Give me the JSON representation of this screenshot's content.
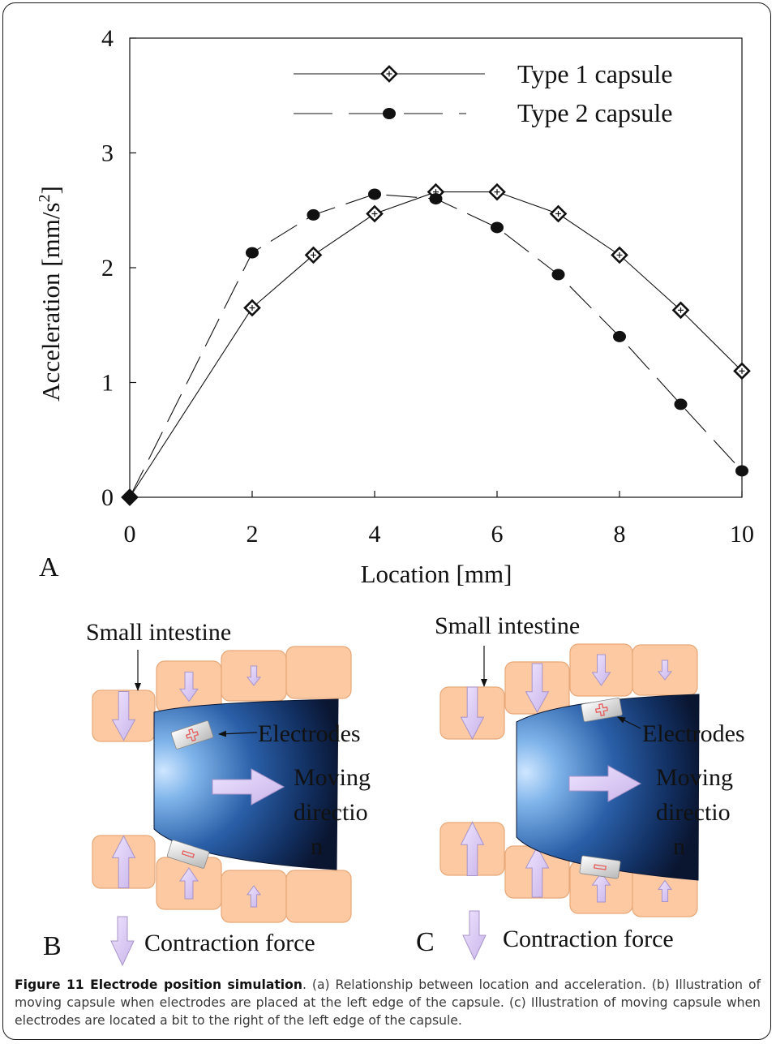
{
  "chart_data": {
    "type": "line",
    "x": [
      0,
      2,
      3,
      4,
      5,
      6,
      7,
      8,
      9,
      10
    ],
    "xlabel": "Location [mm]",
    "ylabel": "Acceleration [mm/s²]",
    "xlim": [
      0,
      10
    ],
    "ylim": [
      0,
      4
    ],
    "xticks": [
      "0",
      "2",
      "4",
      "6",
      "8",
      "10"
    ],
    "yticks": [
      "0",
      "1",
      "2",
      "3",
      "4"
    ],
    "legend_position": "top-right",
    "grid": false,
    "series": [
      {
        "name": "Type 1 capsule",
        "line_style": "solid",
        "marker": "diamond-cross",
        "values": [
          0,
          1.65,
          2.11,
          2.47,
          2.66,
          2.66,
          2.47,
          2.11,
          1.63,
          1.1
        ]
      },
      {
        "name": "Type 2 capsule",
        "line_style": "long-dash",
        "marker": "filled-circle",
        "values": [
          0,
          2.13,
          2.46,
          2.64,
          2.6,
          2.35,
          1.94,
          1.4,
          0.81,
          0.23
        ]
      }
    ]
  },
  "panels": {
    "a": {
      "letter": "A"
    },
    "b": {
      "letter": "B",
      "intestine_label": "Small intestine",
      "electrodes_label": "Electrodes",
      "moving_line1": "Moving",
      "moving_line2": "directio",
      "moving_line3": "n",
      "force_label": "Contraction force"
    },
    "c": {
      "letter": "C",
      "intestine_label": "Small intestine",
      "electrodes_label": "Electrodes",
      "moving_line1": "Moving",
      "moving_line2": "directio",
      "moving_line3": "n",
      "force_label": "Contraction force"
    }
  },
  "colors": {
    "cell_fill": "#fcc9a2",
    "cell_stroke": "#e8a878",
    "arrow_fill": "#ddccf2",
    "arrow_stroke": "#a894c8",
    "capsule_dark": "#0a1530",
    "capsule_light": "#7fb4ea",
    "plus_color": "#e85a5a"
  },
  "caption": {
    "title": "Figure 11 Electrode position simulation",
    "text": ". (a) Relationship between location and acceleration. (b) Illustration of moving capsule when electrodes are placed at the left edge of the capsule. (c) Illustration of moving capsule when electrodes are located a bit to the right of the left edge of the capsule."
  }
}
